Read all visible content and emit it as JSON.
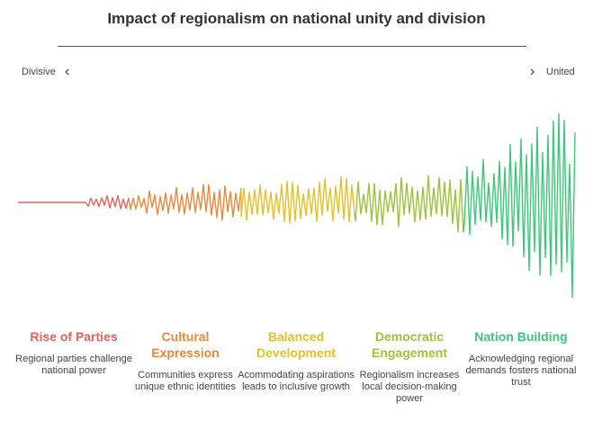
{
  "title": "Impact of regionalism on national unity and division",
  "scale": {
    "left_label": "Divisive",
    "right_label": "United",
    "left_icon": "chevron-left-icon",
    "right_icon": "chevron-right-icon"
  },
  "stages": [
    {
      "heading": "Rise of Parties",
      "description": "Regional parties challenge national power",
      "color": "#e8625b"
    },
    {
      "heading": "Cultural Expression",
      "description": "Communities express unique ethnic identities",
      "color": "#e8893d"
    },
    {
      "heading": "Balanced Development",
      "description": "Acommodating aspirations leads to inclusive growth",
      "color": "#e2c22a"
    },
    {
      "heading": "Democratic Engagement",
      "description": "Regionalism increases local decision-making power",
      "color": "#9cc43b"
    },
    {
      "heading": "Nation Building",
      "description": "Acknowledging regional demands fosters national trust",
      "color": "#3ec77c"
    }
  ]
}
